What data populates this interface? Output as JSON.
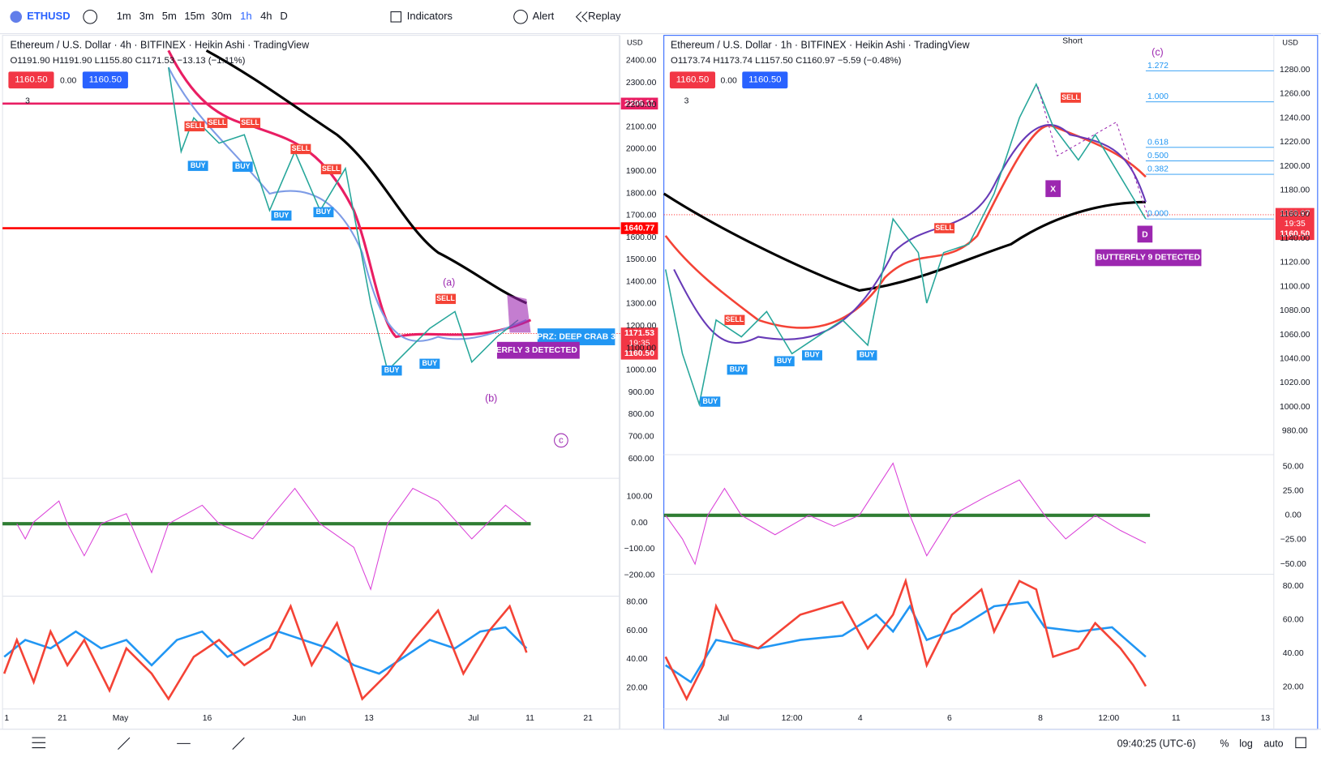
{
  "toolbar": {
    "symbol": "ETHUSD",
    "intervals": [
      "1m",
      "3m",
      "5m",
      "15m",
      "30m",
      "1h",
      "4h",
      "D"
    ],
    "indicators": "Indicators",
    "alert": "Alert",
    "replay": "Replay"
  },
  "left_chart": {
    "title": "Ethereum / U.S. Dollar · 4h · BITFINEX · Heikin Ashi · TradingView",
    "ohlc": "O1191.90 H1191.90 L1155.80 C1171.53 −13.13 (−1.11%)",
    "bid": "1160.50",
    "spread": "0.00",
    "ask": "1160.50",
    "layers": "3",
    "currency": "USD",
    "price_ticks": [
      "2400.00",
      "2300.00",
      "2200.00",
      "2100.00",
      "2000.00",
      "1900.00",
      "1800.00",
      "1700.00",
      "1600.00",
      "1500.00",
      "1400.00",
      "1300.00",
      "1200.00",
      "1100.00",
      "1000.00",
      "900.00",
      "800.00",
      "700.00",
      "600.00"
    ],
    "osc_ticks": [
      "100.00",
      "0.00",
      "−100.00",
      "−200.00"
    ],
    "rsi_ticks": [
      "80.00",
      "60.00",
      "40.00",
      "20.00"
    ],
    "time_ticks": [
      "1",
      "21",
      "May",
      "16",
      "Jun",
      "13",
      "Jul",
      "11",
      "21"
    ],
    "level_labels": [
      "2206.11",
      "1640.77"
    ],
    "last_price": "1171.53",
    "countdown": "19:35",
    "bid_label": "1160.50",
    "annotations": {
      "prz": "PRZ: DEEP CRAB 3",
      "detected": "ERFLY 3 DETECTED",
      "a": "(a)",
      "b": "(b)",
      "c": "c"
    },
    "signals": [
      "SELL",
      "SELL",
      "SELL",
      "BUY",
      "BUY",
      "BUY",
      "SELL",
      "BUY",
      "SELL",
      "BUY",
      "BUY",
      "SELL"
    ]
  },
  "right_chart": {
    "title": "Ethereum / U.S. Dollar · 1h · BITFINEX · Heikin Ashi · TradingView",
    "ohlc": "O1173.74 H1173.74 L1157.50 C1160.97 −5.59 (−0.48%)",
    "bid": "1160.50",
    "spread": "0.00",
    "ask": "1160.50",
    "layers": "3",
    "currency": "USD",
    "price_ticks": [
      "1280.00",
      "1260.00",
      "1240.00",
      "1220.00",
      "1200.00",
      "1180.00",
      "1160.00",
      "1140.00",
      "1120.00",
      "1100.00",
      "1080.00",
      "1060.00",
      "1040.00",
      "1020.00",
      "1000.00",
      "980.00"
    ],
    "osc_ticks": [
      "50.00",
      "25.00",
      "0.00",
      "−25.00",
      "−50.00"
    ],
    "rsi_ticks": [
      "80.00",
      "60.00",
      "40.00",
      "20.00"
    ],
    "time_ticks": [
      "Jul",
      "12:00",
      "4",
      "6",
      "8",
      "12:00",
      "11",
      "13"
    ],
    "last_price": "1160.97",
    "countdown": "19:35",
    "bid_label": "1160.50",
    "fib_levels": [
      "1.272",
      "1.000",
      "0.618",
      "0.500",
      "0.382",
      "0.000"
    ],
    "annotations": {
      "detected": "BUTTERFLY 9 DETECTED",
      "x": "X",
      "d": "D",
      "c": "(c)",
      "short": "Short"
    },
    "signals": [
      "BUY",
      "BUY",
      "BUY",
      "BUY",
      "BUY",
      "SELL",
      "SELL",
      "SELL"
    ]
  },
  "bottom": {
    "clock": "09:40:25 (UTC-6)",
    "percent": "%",
    "log": "log",
    "auto": "auto"
  }
}
